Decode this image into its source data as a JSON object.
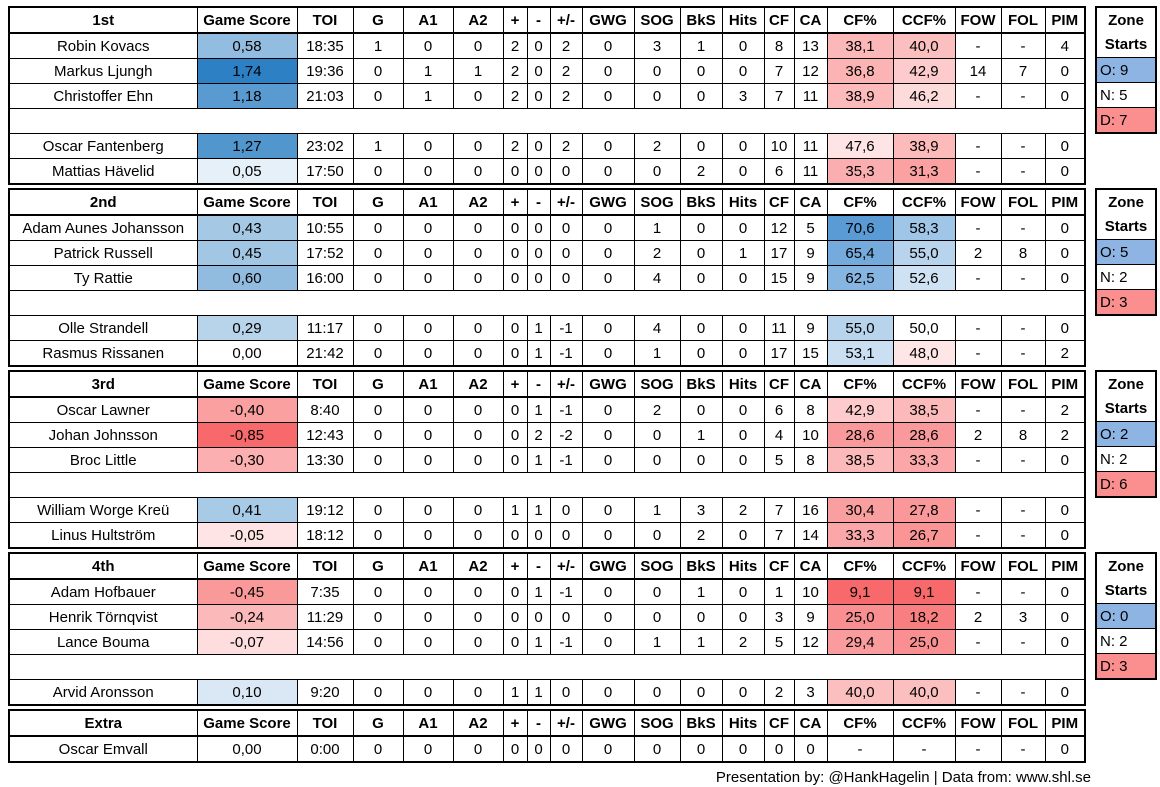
{
  "columns": {
    "labels": [
      "Game Score",
      "TOI",
      "G",
      "A1",
      "A2",
      "+",
      "-",
      "+/-",
      "GWG",
      "SOG",
      "BkS",
      "Hits",
      "CF",
      "CA",
      "CF%",
      "CCF%",
      "FOW",
      "FOL",
      "PIM"
    ]
  },
  "zone_box": {
    "line1": "Zone",
    "line2": "Starts"
  },
  "colors": {
    "border": "#000000",
    "heat_negative": "#F8696B",
    "heat_midpoint": "#FFFFFF",
    "heat_positive_gamescore": "#2E80C4",
    "heat_positive_corsi": "#5A9BD5",
    "zone_offensive_bg": "#8DB4E2",
    "zone_neutral_bg": "#FFFFFF",
    "zone_defensive_bg": "#FB8E8E"
  },
  "heat_scales": {
    "game_score": {
      "min": -0.85,
      "mid": 0,
      "max": 1.74
    },
    "corsi": {
      "min": 9.1,
      "mid": 50,
      "max": 70.6
    }
  },
  "sections": [
    {
      "label": "1st",
      "zone": {
        "offensive": "O: 9",
        "neutral": "N: 5",
        "defensive": "D: 7"
      },
      "rows": [
        {
          "name": "Robin Kovacs",
          "gs": "0,58",
          "gs_v": 0.58,
          "toi": "18:35",
          "g": "1",
          "a1": "0",
          "a2": "0",
          "p": "2",
          "m": "0",
          "pm": "2",
          "gwg": "0",
          "sog": "3",
          "bks": "1",
          "hits": "0",
          "cf": "8",
          "ca": "13",
          "cfp": "38,1",
          "cfp_v": 38.1,
          "ccfp": "40,0",
          "ccfp_v": 40.0,
          "fow": "-",
          "fol": "-",
          "pim": "4"
        },
        {
          "name": "Markus Ljungh",
          "gs": "1,74",
          "gs_v": 1.74,
          "toi": "19:36",
          "g": "0",
          "a1": "1",
          "a2": "1",
          "p": "2",
          "m": "0",
          "pm": "2",
          "gwg": "0",
          "sog": "0",
          "bks": "0",
          "hits": "0",
          "cf": "7",
          "ca": "12",
          "cfp": "36,8",
          "cfp_v": 36.8,
          "ccfp": "42,9",
          "ccfp_v": 42.9,
          "fow": "14",
          "fol": "7",
          "pim": "0"
        },
        {
          "name": "Christoffer Ehn",
          "gs": "1,18",
          "gs_v": 1.18,
          "toi": "21:03",
          "g": "0",
          "a1": "1",
          "a2": "0",
          "p": "2",
          "m": "0",
          "pm": "2",
          "gwg": "0",
          "sog": "0",
          "bks": "0",
          "hits": "3",
          "cf": "7",
          "ca": "11",
          "cfp": "38,9",
          "cfp_v": 38.9,
          "ccfp": "46,2",
          "ccfp_v": 46.2,
          "fow": "-",
          "fol": "-",
          "pim": "0"
        },
        null,
        {
          "name": "Oscar Fantenberg",
          "gs": "1,27",
          "gs_v": 1.27,
          "toi": "23:02",
          "g": "1",
          "a1": "0",
          "a2": "0",
          "p": "2",
          "m": "0",
          "pm": "2",
          "gwg": "0",
          "sog": "2",
          "bks": "0",
          "hits": "0",
          "cf": "10",
          "ca": "11",
          "cfp": "47,6",
          "cfp_v": 47.6,
          "ccfp": "38,9",
          "ccfp_v": 38.9,
          "fow": "-",
          "fol": "-",
          "pim": "0"
        },
        {
          "name": "Mattias Hävelid",
          "gs": "0,05",
          "gs_v": 0.05,
          "toi": "17:50",
          "g": "0",
          "a1": "0",
          "a2": "0",
          "p": "0",
          "m": "0",
          "pm": "0",
          "gwg": "0",
          "sog": "0",
          "bks": "2",
          "hits": "0",
          "cf": "6",
          "ca": "11",
          "cfp": "35,3",
          "cfp_v": 35.3,
          "ccfp": "31,3",
          "ccfp_v": 31.3,
          "fow": "-",
          "fol": "-",
          "pim": "0"
        }
      ]
    },
    {
      "label": "2nd",
      "zone": {
        "offensive": "O: 5",
        "neutral": "N: 2",
        "defensive": "D: 3"
      },
      "rows": [
        {
          "name": "Adam Aunes Johansson",
          "gs": "0,43",
          "gs_v": 0.43,
          "toi": "10:55",
          "g": "0",
          "a1": "0",
          "a2": "0",
          "p": "0",
          "m": "0",
          "pm": "0",
          "gwg": "0",
          "sog": "1",
          "bks": "0",
          "hits": "0",
          "cf": "12",
          "ca": "5",
          "cfp": "70,6",
          "cfp_v": 70.6,
          "ccfp": "58,3",
          "ccfp_v": 58.3,
          "fow": "-",
          "fol": "-",
          "pim": "0"
        },
        {
          "name": "Patrick Russell",
          "gs": "0,45",
          "gs_v": 0.45,
          "toi": "17:52",
          "g": "0",
          "a1": "0",
          "a2": "0",
          "p": "0",
          "m": "0",
          "pm": "0",
          "gwg": "0",
          "sog": "2",
          "bks": "0",
          "hits": "1",
          "cf": "17",
          "ca": "9",
          "cfp": "65,4",
          "cfp_v": 65.4,
          "ccfp": "55,0",
          "ccfp_v": 55.0,
          "fow": "2",
          "fol": "8",
          "pim": "0"
        },
        {
          "name": "Ty Rattie",
          "gs": "0,60",
          "gs_v": 0.6,
          "toi": "16:00",
          "g": "0",
          "a1": "0",
          "a2": "0",
          "p": "0",
          "m": "0",
          "pm": "0",
          "gwg": "0",
          "sog": "4",
          "bks": "0",
          "hits": "0",
          "cf": "15",
          "ca": "9",
          "cfp": "62,5",
          "cfp_v": 62.5,
          "ccfp": "52,6",
          "ccfp_v": 52.6,
          "fow": "-",
          "fol": "-",
          "pim": "0"
        },
        null,
        {
          "name": "Olle Strandell",
          "gs": "0,29",
          "gs_v": 0.29,
          "toi": "11:17",
          "g": "0",
          "a1": "0",
          "a2": "0",
          "p": "0",
          "m": "1",
          "pm": "-1",
          "gwg": "0",
          "sog": "4",
          "bks": "0",
          "hits": "0",
          "cf": "11",
          "ca": "9",
          "cfp": "55,0",
          "cfp_v": 55.0,
          "ccfp": "50,0",
          "ccfp_v": 50.0,
          "fow": "-",
          "fol": "-",
          "pim": "0"
        },
        {
          "name": "Rasmus Rissanen",
          "gs": "0,00",
          "gs_v": 0.0,
          "toi": "21:42",
          "g": "0",
          "a1": "0",
          "a2": "0",
          "p": "0",
          "m": "1",
          "pm": "-1",
          "gwg": "0",
          "sog": "1",
          "bks": "0",
          "hits": "0",
          "cf": "17",
          "ca": "15",
          "cfp": "53,1",
          "cfp_v": 53.1,
          "ccfp": "48,0",
          "ccfp_v": 48.0,
          "fow": "-",
          "fol": "-",
          "pim": "2"
        }
      ]
    },
    {
      "label": "3rd",
      "zone": {
        "offensive": "O: 2",
        "neutral": "N: 2",
        "defensive": "D: 6"
      },
      "rows": [
        {
          "name": "Oscar Lawner",
          "gs": "-0,40",
          "gs_v": -0.4,
          "toi": "8:40",
          "g": "0",
          "a1": "0",
          "a2": "0",
          "p": "0",
          "m": "1",
          "pm": "-1",
          "gwg": "0",
          "sog": "2",
          "bks": "0",
          "hits": "0",
          "cf": "6",
          "ca": "8",
          "cfp": "42,9",
          "cfp_v": 42.9,
          "ccfp": "38,5",
          "ccfp_v": 38.5,
          "fow": "-",
          "fol": "-",
          "pim": "2"
        },
        {
          "name": "Johan Johnsson",
          "gs": "-0,85",
          "gs_v": -0.85,
          "toi": "12:43",
          "g": "0",
          "a1": "0",
          "a2": "0",
          "p": "0",
          "m": "2",
          "pm": "-2",
          "gwg": "0",
          "sog": "0",
          "bks": "1",
          "hits": "0",
          "cf": "4",
          "ca": "10",
          "cfp": "28,6",
          "cfp_v": 28.6,
          "ccfp": "28,6",
          "ccfp_v": 28.6,
          "fow": "2",
          "fol": "8",
          "pim": "2"
        },
        {
          "name": "Broc Little",
          "gs": "-0,30",
          "gs_v": -0.3,
          "toi": "13:30",
          "g": "0",
          "a1": "0",
          "a2": "0",
          "p": "0",
          "m": "1",
          "pm": "-1",
          "gwg": "0",
          "sog": "0",
          "bks": "0",
          "hits": "0",
          "cf": "5",
          "ca": "8",
          "cfp": "38,5",
          "cfp_v": 38.5,
          "ccfp": "33,3",
          "ccfp_v": 33.3,
          "fow": "-",
          "fol": "-",
          "pim": "0"
        },
        null,
        {
          "name": "William Worge Kreü",
          "gs": "0,41",
          "gs_v": 0.41,
          "toi": "19:12",
          "g": "0",
          "a1": "0",
          "a2": "0",
          "p": "1",
          "m": "1",
          "pm": "0",
          "gwg": "0",
          "sog": "1",
          "bks": "3",
          "hits": "2",
          "cf": "7",
          "ca": "16",
          "cfp": "30,4",
          "cfp_v": 30.4,
          "ccfp": "27,8",
          "ccfp_v": 27.8,
          "fow": "-",
          "fol": "-",
          "pim": "0"
        },
        {
          "name": "Linus Hultström",
          "gs": "-0,05",
          "gs_v": -0.05,
          "toi": "18:12",
          "g": "0",
          "a1": "0",
          "a2": "0",
          "p": "0",
          "m": "0",
          "pm": "0",
          "gwg": "0",
          "sog": "0",
          "bks": "2",
          "hits": "0",
          "cf": "7",
          "ca": "14",
          "cfp": "33,3",
          "cfp_v": 33.3,
          "ccfp": "26,7",
          "ccfp_v": 26.7,
          "fow": "-",
          "fol": "-",
          "pim": "0"
        }
      ]
    },
    {
      "label": "4th",
      "zone": {
        "offensive": "O: 0",
        "neutral": "N: 2",
        "defensive": "D: 3"
      },
      "rows": [
        {
          "name": "Adam Hofbauer",
          "gs": "-0,45",
          "gs_v": -0.45,
          "toi": "7:35",
          "g": "0",
          "a1": "0",
          "a2": "0",
          "p": "0",
          "m": "1",
          "pm": "-1",
          "gwg": "0",
          "sog": "0",
          "bks": "1",
          "hits": "0",
          "cf": "1",
          "ca": "10",
          "cfp": "9,1",
          "cfp_v": 9.1,
          "ccfp": "9,1",
          "ccfp_v": 9.1,
          "fow": "-",
          "fol": "-",
          "pim": "0"
        },
        {
          "name": "Henrik Törnqvist",
          "gs": "-0,24",
          "gs_v": -0.24,
          "toi": "11:29",
          "g": "0",
          "a1": "0",
          "a2": "0",
          "p": "0",
          "m": "0",
          "pm": "0",
          "gwg": "0",
          "sog": "0",
          "bks": "0",
          "hits": "0",
          "cf": "3",
          "ca": "9",
          "cfp": "25,0",
          "cfp_v": 25.0,
          "ccfp": "18,2",
          "ccfp_v": 18.2,
          "fow": "2",
          "fol": "3",
          "pim": "0"
        },
        {
          "name": "Lance Bouma",
          "gs": "-0,07",
          "gs_v": -0.07,
          "toi": "14:56",
          "g": "0",
          "a1": "0",
          "a2": "0",
          "p": "0",
          "m": "1",
          "pm": "-1",
          "gwg": "0",
          "sog": "1",
          "bks": "1",
          "hits": "2",
          "cf": "5",
          "ca": "12",
          "cfp": "29,4",
          "cfp_v": 29.4,
          "ccfp": "25,0",
          "ccfp_v": 25.0,
          "fow": "-",
          "fol": "-",
          "pim": "0"
        },
        null,
        {
          "name": "Arvid Aronsson",
          "gs": "0,10",
          "gs_v": 0.1,
          "toi": "9:20",
          "g": "0",
          "a1": "0",
          "a2": "0",
          "p": "1",
          "m": "1",
          "pm": "0",
          "gwg": "0",
          "sog": "0",
          "bks": "0",
          "hits": "0",
          "cf": "2",
          "ca": "3",
          "cfp": "40,0",
          "cfp_v": 40.0,
          "ccfp": "40,0",
          "ccfp_v": 40.0,
          "fow": "-",
          "fol": "-",
          "pim": "0"
        }
      ]
    },
    {
      "label": "Extra",
      "zone": null,
      "rows": [
        {
          "name": "Oscar Emvall",
          "gs": "0,00",
          "gs_v": 0.0,
          "toi": "0:00",
          "g": "0",
          "a1": "0",
          "a2": "0",
          "p": "0",
          "m": "0",
          "pm": "0",
          "gwg": "0",
          "sog": "0",
          "bks": "0",
          "hits": "0",
          "cf": "0",
          "ca": "0",
          "cfp": "-",
          "ccfp": "-",
          "fow": "-",
          "fol": "-",
          "pim": "0"
        }
      ]
    }
  ],
  "footer": {
    "text": "Presentation by: @HankHagelin | Data from: www.shl.se"
  }
}
